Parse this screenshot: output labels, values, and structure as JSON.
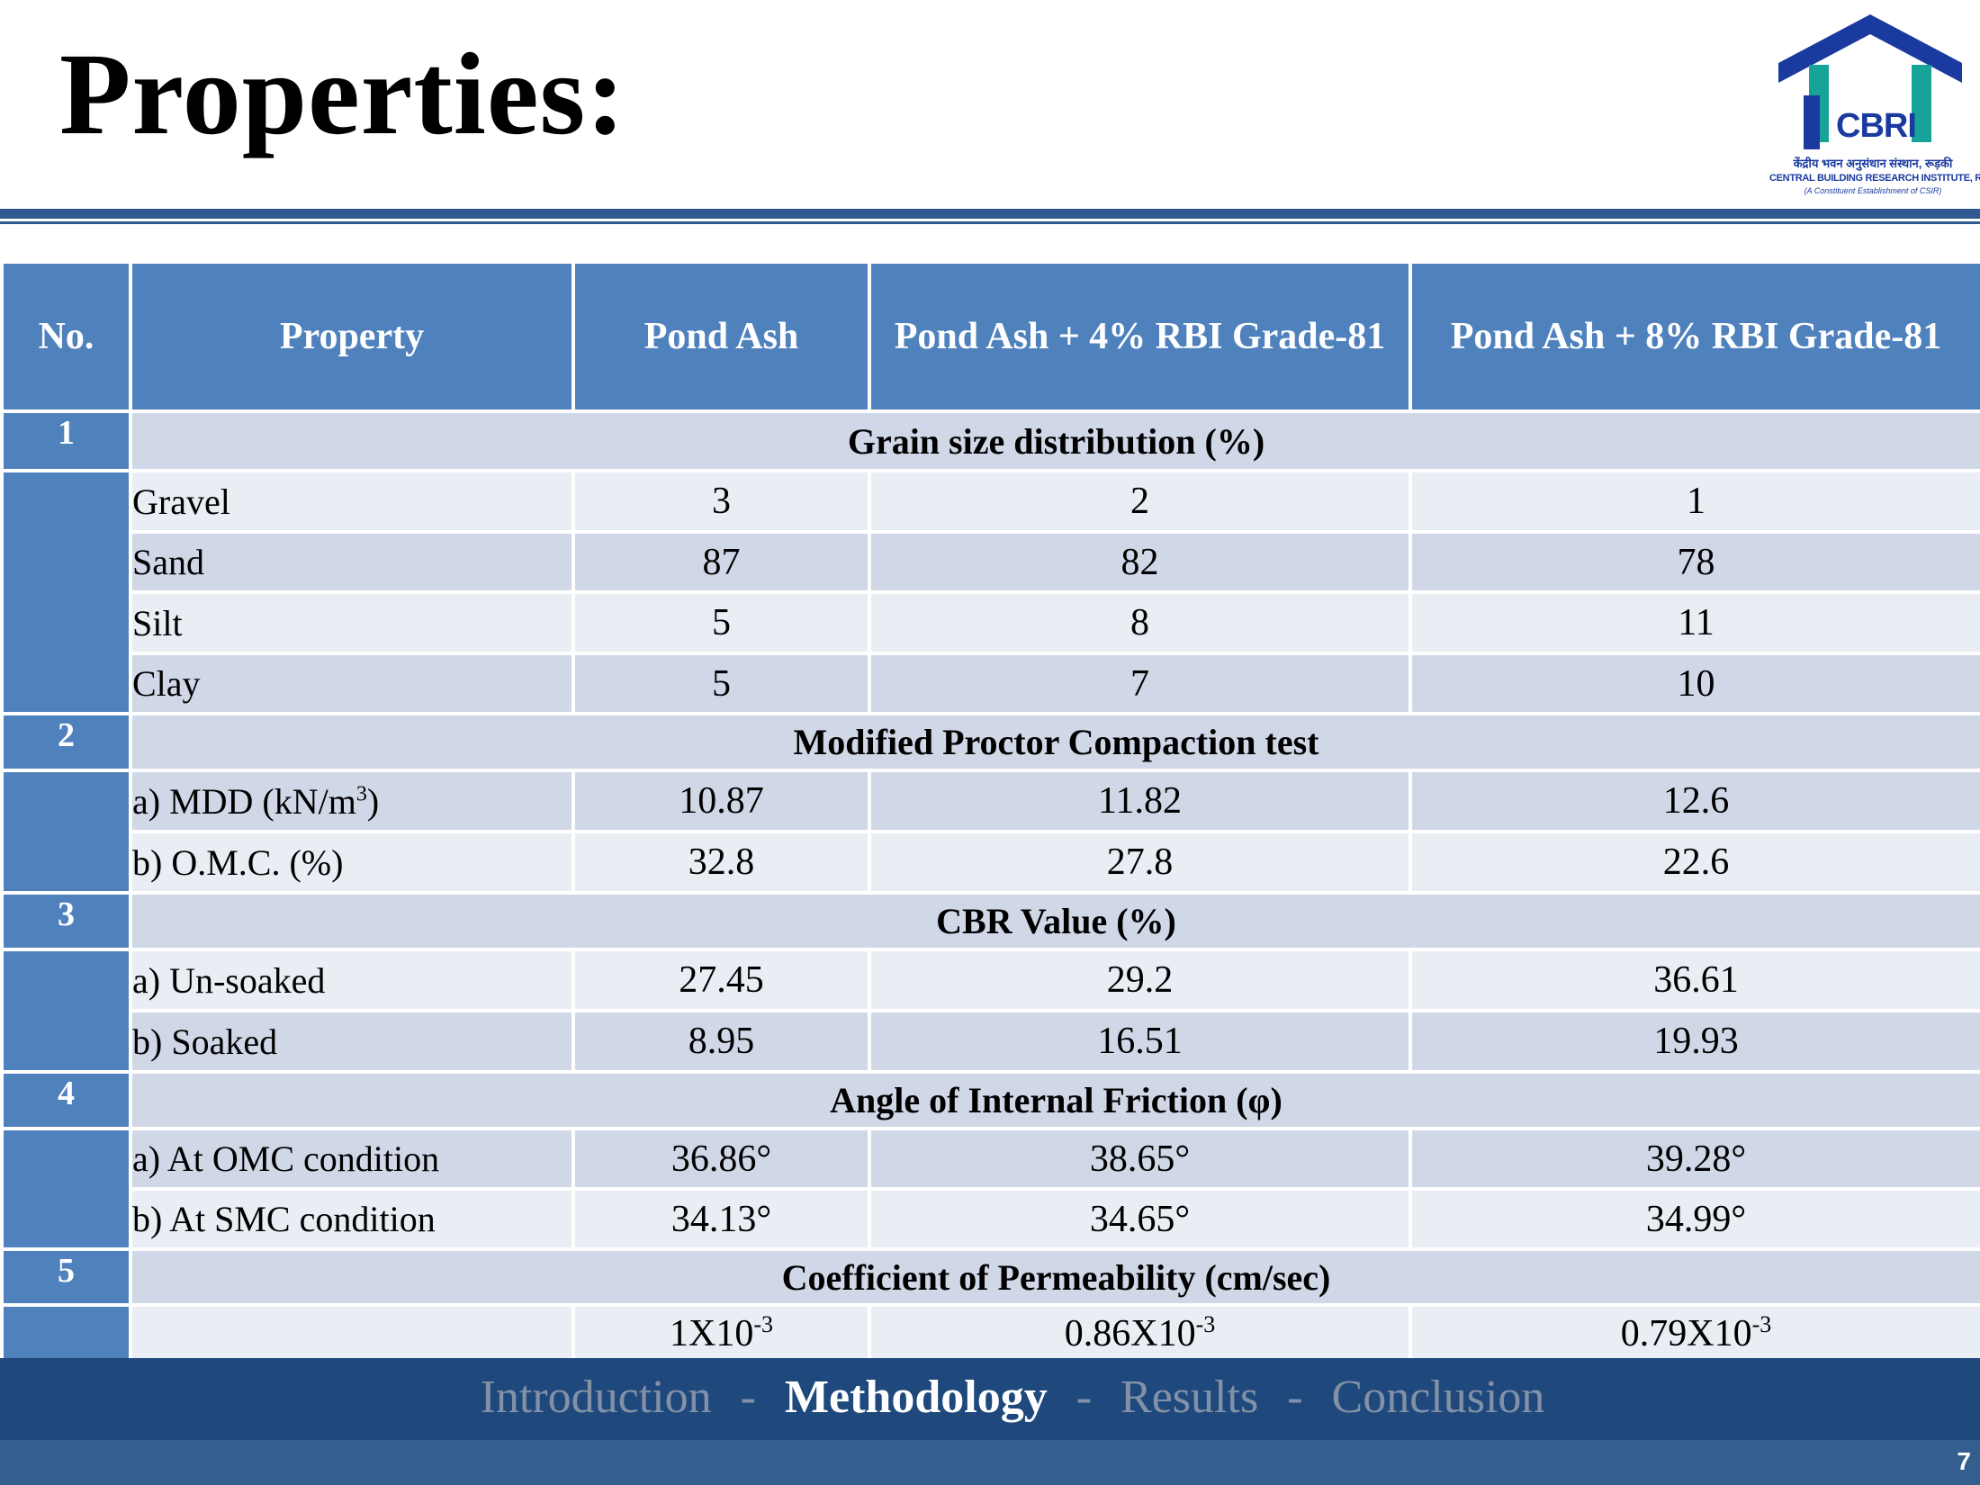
{
  "slide": {
    "title": "Properties:",
    "page_number": "7"
  },
  "logo": {
    "wordmark": "CBRI",
    "hindi_name": "केंद्रीय भवन अनुसंधान संस्थान, रूड़की",
    "english_name": "CENTRAL BUILDING RESEARCH INSTITUTE, ROORKEE",
    "subtitle": "(A Constituent Establishment of CSIR)",
    "color": "#1a3aa0"
  },
  "table": {
    "headers": [
      "No.",
      "Property",
      "Pond Ash",
      "Pond Ash + 4% RBI Grade-81",
      "Pond Ash + 8% RBI Grade-81"
    ],
    "groups": [
      {
        "no": "1",
        "title": "Grain size distribution (%)",
        "rows": [
          {
            "property": "Gravel",
            "values": [
              "3",
              "2",
              "1"
            ]
          },
          {
            "property": "Sand",
            "values": [
              "87",
              "82",
              "78"
            ]
          },
          {
            "property": "Silt",
            "values": [
              "5",
              "8",
              "11"
            ]
          },
          {
            "property": "Clay",
            "values": [
              "5",
              "7",
              "10"
            ]
          }
        ]
      },
      {
        "no": "2",
        "title": "Modified Proctor Compaction test",
        "rows": [
          {
            "property": "a) MDD (kN/m",
            "property_sup": "3",
            "property_tail": ")",
            "values": [
              "10.87",
              "11.82",
              "12.6"
            ]
          },
          {
            "property": "b) O.M.C. (%)",
            "values": [
              "32.8",
              "27.8",
              "22.6"
            ]
          }
        ]
      },
      {
        "no": "3",
        "title": "CBR Value (%)",
        "rows": [
          {
            "property": "a) Un-soaked",
            "values": [
              "27.45",
              "29.2",
              "36.61"
            ]
          },
          {
            "property": "b) Soaked",
            "values": [
              "8.95",
              "16.51",
              "19.93"
            ]
          }
        ]
      },
      {
        "no": "4",
        "title": "Angle of Internal Friction (φ)",
        "rows": [
          {
            "property": "a) At OMC condition",
            "values": [
              "36.86°",
              "38.65°",
              "39.28°"
            ]
          },
          {
            "property": "b) At SMC condition",
            "values": [
              "34.13°",
              "34.65°",
              "34.99°"
            ]
          }
        ]
      },
      {
        "no": "5",
        "title": "Coefficient of Permeability (cm/sec)",
        "rows": [
          {
            "property": "",
            "values": [
              "1X10",
              "0.86X10",
              "0.79X10"
            ],
            "value_exponents": [
              "-3",
              "-3",
              "-3"
            ]
          }
        ]
      }
    ]
  },
  "nav": {
    "items": [
      "Introduction",
      "Methodology",
      "Results",
      "Conclusion"
    ],
    "separator": "-",
    "active": "Methodology"
  },
  "colors": {
    "header_fill": "#4f81bd",
    "row_light": "#e9edf4",
    "row_dark": "#d0d8e8",
    "rule": "#2f5a8f",
    "nav_bar": "#1f497d",
    "footer_bar": "#345e8e"
  }
}
